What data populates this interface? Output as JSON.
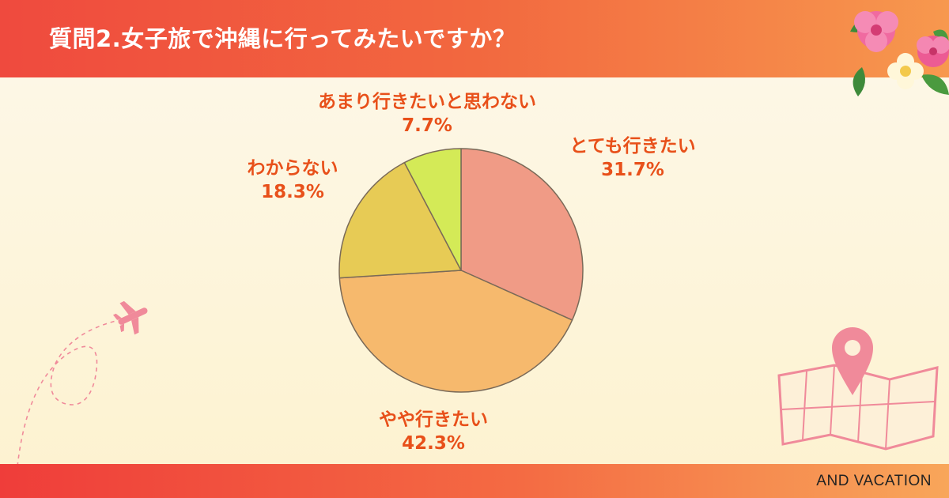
{
  "header": {
    "title": "質問2.女子旅で沖縄に行ってみたいですか？"
  },
  "footer": {
    "brand": "AND VACATION"
  },
  "colors": {
    "accent": "#e8501a",
    "header_start": "#ef4a3e",
    "header_end": "#f7984e"
  },
  "decorations": {
    "top_right": "hibiscus-flowers-icon",
    "left": "airplane-icon",
    "bottom_right": "map-pin-icon"
  },
  "chart_data": {
    "type": "pie",
    "start_angle": "12 o'clock",
    "direction": "clockwise",
    "slices": [
      {
        "label": "とても行きたい",
        "value": 31.7,
        "value_label": "31.7%",
        "color": "#f09b86"
      },
      {
        "label": "やや行きたい",
        "value": 42.3,
        "value_label": "42.3%",
        "color": "#f6b96d"
      },
      {
        "label": "わからない",
        "value": 18.3,
        "value_label": "18.3%",
        "color": "#e7cb55"
      },
      {
        "label": "あまり行きたいと思わない",
        "value": 7.7,
        "value_label": "7.7%",
        "color": "#d4ea57"
      }
    ]
  }
}
